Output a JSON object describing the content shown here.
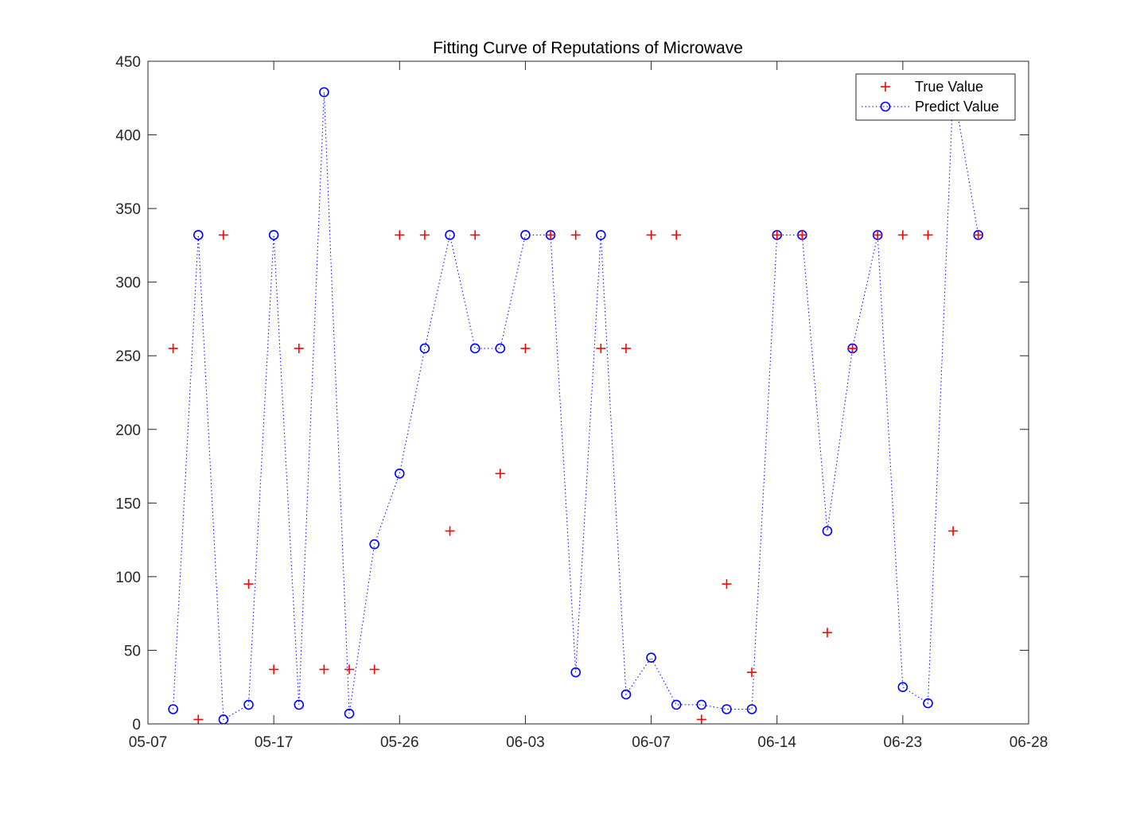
{
  "chart_data": {
    "type": "scatter",
    "title": "Fitting Curve of Reputations of Microwave",
    "xlabel": "",
    "ylabel": "",
    "x_tick_labels": [
      "05-07",
      "05-17",
      "05-26",
      "06-03",
      "06-07",
      "06-14",
      "06-23",
      "06-28"
    ],
    "y_tick_labels": [
      "0",
      "50",
      "100",
      "150",
      "200",
      "250",
      "300",
      "350",
      "400",
      "450"
    ],
    "xlim": [
      0,
      35
    ],
    "ylim": [
      0,
      450
    ],
    "x": [
      1,
      2,
      3,
      4,
      5,
      6,
      7,
      8,
      9,
      10,
      11,
      12,
      13,
      14,
      15,
      16,
      17,
      18,
      19,
      20,
      21,
      22,
      23,
      24,
      25,
      26,
      27,
      28,
      29,
      30,
      31,
      32,
      33
    ],
    "grid": false,
    "legend_position": "top-right",
    "series": [
      {
        "name": "True Value",
        "marker": "plus",
        "color": "#ff0000",
        "line": "none",
        "values": [
          255,
          3,
          332,
          95,
          37,
          255,
          37,
          37,
          37,
          332,
          332,
          131,
          332,
          170,
          255,
          332,
          332,
          255,
          255,
          332,
          332,
          3,
          95,
          35,
          332,
          332,
          62,
          255,
          332,
          332,
          332,
          131,
          332
        ]
      },
      {
        "name": "Predict Value",
        "marker": "circle",
        "color": "#0000ff",
        "line": "dotted",
        "values": [
          10,
          332,
          3,
          13,
          332,
          13,
          429,
          7,
          122,
          170,
          255,
          332,
          255,
          255,
          332,
          332,
          35,
          332,
          20,
          45,
          13,
          13,
          10,
          10,
          332,
          332,
          131,
          255,
          332,
          25,
          14,
          432,
          332
        ]
      }
    ]
  },
  "colors": {
    "axis": "#262626",
    "true_value": "#ff0000",
    "predict_value": "#0000ff"
  }
}
